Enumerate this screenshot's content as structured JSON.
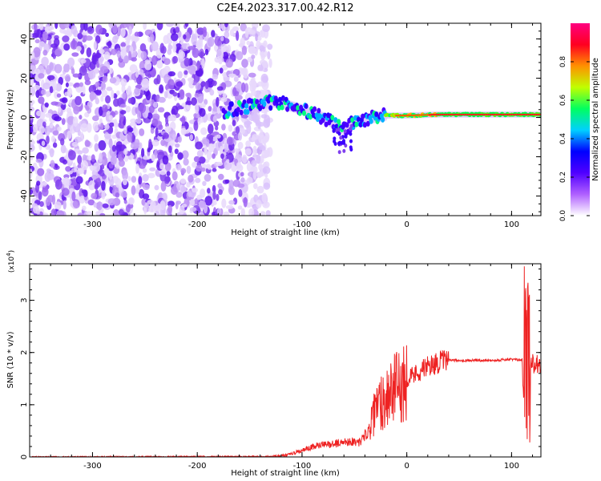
{
  "figure": {
    "title": "C2E4.2023.317.00.42.R12"
  },
  "chart_data": [
    {
      "type": "heatmap",
      "panel": "spectrogram",
      "xlabel": "Height of straight line (km)",
      "ylabel": "Frequency (Hz)",
      "xlim": [
        -360,
        128
      ],
      "ylim": [
        -50,
        48
      ],
      "x_ticks": [
        "-300",
        "-200",
        "-100",
        "0",
        "100"
      ],
      "y_ticks": [
        "-40",
        "-20",
        "0",
        "20",
        "40"
      ],
      "grid": false,
      "colormap": [
        "#ffffff",
        "#b060ff",
        "#5000ff",
        "#0000ff",
        "#00d0ff",
        "#00ff60",
        "#c0ff00",
        "#ff9000",
        "#ff0020",
        "#ff0080"
      ],
      "colorbar": {
        "label": "Normalized spectral amplitude",
        "range": [
          0.0,
          1.0
        ],
        "ticks": [
          "0.0",
          "0.2",
          "0.4",
          "0.6",
          "0.8"
        ]
      },
      "noise_region_x": [
        -360,
        -130
      ],
      "signal_track": {
        "x": [
          -175,
          -150,
          -125,
          -100,
          -80,
          -60,
          -50,
          -40,
          -20,
          0,
          30,
          60,
          90,
          110,
          128
        ],
        "y": [
          3,
          6,
          8,
          4,
          0,
          -6,
          -2,
          -1,
          1,
          1,
          1.5,
          1.5,
          1.5,
          1.5,
          1.5
        ]
      }
    },
    {
      "type": "line",
      "panel": "snr",
      "xlabel": "Height of straight line (km)",
      "ylabel": "SNR (10 * v/v)",
      "y_scale_label": "(x10",
      "y_scale_exponent": "4",
      "y_scale_suffix": ")",
      "xlim": [
        -360,
        128
      ],
      "ylim": [
        0,
        3.7
      ],
      "x_ticks": [
        "-300",
        "-200",
        "-100",
        "0",
        "100"
      ],
      "y_ticks": [
        "0",
        "1",
        "2",
        "3"
      ],
      "grid": false,
      "color": "#ee2222",
      "series": [
        {
          "x": [
            -360,
            -130,
            -115,
            -100,
            -85,
            -70,
            -55,
            -45,
            -35,
            -28,
            -20,
            -15,
            -10,
            -5,
            0,
            10,
            20,
            30,
            40,
            50,
            60,
            80,
            100,
            110,
            113,
            115,
            117,
            128
          ],
          "y": [
            0.0,
            0.01,
            0.03,
            0.12,
            0.22,
            0.25,
            0.3,
            0.28,
            0.55,
            1.0,
            1.15,
            1.3,
            1.3,
            1.4,
            1.5,
            1.62,
            1.73,
            1.81,
            1.85,
            1.85,
            1.85,
            1.85,
            1.87,
            1.85,
            0.5,
            3.2,
            1.8,
            1.8
          ]
        }
      ]
    }
  ]
}
